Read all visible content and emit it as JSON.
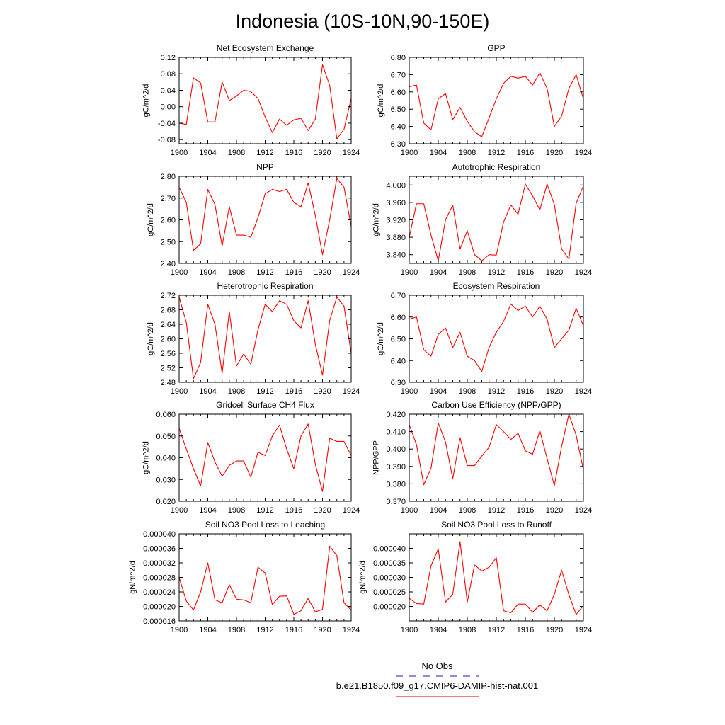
{
  "figure_title": "Indonesia (10S-10N,90-150E)",
  "legend": {
    "obs_label": "No Obs",
    "obs_color": "#4a4acc",
    "model_label": "b.e21.B1850.f09_g17.CMIP6-DAMIP-hist-nat.001",
    "model_color": "#e03030"
  },
  "chart_data": [
    {
      "type": "line",
      "title": "Net Ecosystem Exchange",
      "ylabel": "gC/m^2/d",
      "xlim": [
        1900,
        1924
      ],
      "xticks": [
        "1900",
        "1904",
        "1908",
        "1912",
        "1916",
        "1920",
        "1924"
      ],
      "ylim": [
        -0.09,
        0.12
      ],
      "yticks": [
        "-0.08",
        "-0.04",
        "0.00",
        "0.04",
        "0.08",
        "0.12"
      ],
      "x": [
        1900,
        1901,
        1902,
        1903,
        1904,
        1905,
        1906,
        1907,
        1908,
        1909,
        1910,
        1911,
        1912,
        1913,
        1914,
        1915,
        1916,
        1917,
        1918,
        1919,
        1920,
        1921,
        1922,
        1923,
        1924
      ],
      "series": [
        {
          "color": "#ff0000",
          "values": [
            -0.04,
            -0.043,
            0.07,
            0.058,
            -0.037,
            -0.037,
            0.06,
            0.015,
            0.026,
            0.04,
            0.037,
            0.02,
            -0.025,
            -0.063,
            -0.03,
            -0.045,
            -0.032,
            -0.028,
            -0.058,
            -0.03,
            0.102,
            0.052,
            -0.078,
            -0.055,
            0.02
          ]
        }
      ]
    },
    {
      "type": "line",
      "title": "GPP",
      "ylabel": "gC/m^2/d",
      "xlim": [
        1900,
        1924
      ],
      "xticks": [
        "1900",
        "1904",
        "1908",
        "1912",
        "1916",
        "1920",
        "1924"
      ],
      "ylim": [
        6.3,
        6.8
      ],
      "yticks": [
        "6.30",
        "6.40",
        "6.50",
        "6.60",
        "6.70",
        "6.80"
      ],
      "x": [
        1900,
        1901,
        1902,
        1903,
        1904,
        1905,
        1906,
        1907,
        1908,
        1909,
        1910,
        1911,
        1912,
        1913,
        1914,
        1915,
        1916,
        1917,
        1918,
        1919,
        1920,
        1921,
        1922,
        1923,
        1924
      ],
      "series": [
        {
          "color": "#ff0000",
          "values": [
            6.63,
            6.64,
            6.42,
            6.38,
            6.56,
            6.59,
            6.44,
            6.51,
            6.43,
            6.37,
            6.34,
            6.45,
            6.56,
            6.65,
            6.69,
            6.68,
            6.69,
            6.64,
            6.71,
            6.62,
            6.4,
            6.46,
            6.62,
            6.7,
            6.56
          ]
        }
      ]
    },
    {
      "type": "line",
      "title": "NPP",
      "ylabel": "gC/m^2/d",
      "xlim": [
        1900,
        1924
      ],
      "xticks": [
        "1900",
        "1904",
        "1908",
        "1912",
        "1916",
        "1920",
        "1924"
      ],
      "ylim": [
        2.4,
        2.8
      ],
      "yticks": [
        "2.40",
        "2.50",
        "2.60",
        "2.70",
        "2.80"
      ],
      "x": [
        1900,
        1901,
        1902,
        1903,
        1904,
        1905,
        1906,
        1907,
        1908,
        1909,
        1910,
        1911,
        1912,
        1913,
        1914,
        1915,
        1916,
        1917,
        1918,
        1919,
        1920,
        1921,
        1922,
        1923,
        1924
      ],
      "series": [
        {
          "color": "#ff0000",
          "values": [
            2.75,
            2.68,
            2.46,
            2.49,
            2.74,
            2.67,
            2.48,
            2.66,
            2.53,
            2.53,
            2.52,
            2.61,
            2.72,
            2.74,
            2.73,
            2.74,
            2.68,
            2.66,
            2.77,
            2.62,
            2.44,
            2.6,
            2.79,
            2.75,
            2.57
          ]
        }
      ]
    },
    {
      "type": "line",
      "title": "Autotrophic Respiration",
      "ylabel": "gC/m^2/d",
      "xlim": [
        1900,
        1924
      ],
      "xticks": [
        "1900",
        "1904",
        "1908",
        "1912",
        "1916",
        "1920",
        "1924"
      ],
      "ylim": [
        3.82,
        4.02
      ],
      "yticks": [
        "3.840",
        "3.880",
        "3.920",
        "3.960",
        "4.000"
      ],
      "x": [
        1900,
        1901,
        1902,
        1903,
        1904,
        1905,
        1906,
        1907,
        1908,
        1909,
        1910,
        1911,
        1912,
        1913,
        1914,
        1915,
        1916,
        1917,
        1918,
        1919,
        1920,
        1921,
        1922,
        1923,
        1924
      ],
      "series": [
        {
          "color": "#ff0000",
          "values": [
            3.88,
            3.957,
            3.957,
            3.885,
            3.826,
            3.92,
            3.954,
            3.853,
            3.895,
            3.84,
            3.826,
            3.84,
            3.839,
            3.915,
            3.954,
            3.933,
            4.002,
            3.975,
            3.943,
            4.002,
            3.955,
            3.853,
            3.83,
            3.958,
            3.998
          ]
        }
      ]
    },
    {
      "type": "line",
      "title": "Heterotrophic Respiration",
      "ylabel": "gC/m^2/d",
      "xlim": [
        1900,
        1924
      ],
      "xticks": [
        "1900",
        "1904",
        "1908",
        "1912",
        "1916",
        "1920",
        "1924"
      ],
      "ylim": [
        2.48,
        2.72
      ],
      "yticks": [
        "2.48",
        "2.52",
        "2.56",
        "2.60",
        "2.64",
        "2.68",
        "2.72"
      ],
      "x": [
        1900,
        1901,
        1902,
        1903,
        1904,
        1905,
        1906,
        1907,
        1908,
        1909,
        1910,
        1911,
        1912,
        1913,
        1914,
        1915,
        1916,
        1917,
        1918,
        1919,
        1920,
        1921,
        1922,
        1923,
        1924
      ],
      "series": [
        {
          "color": "#ff0000",
          "values": [
            2.715,
            2.645,
            2.49,
            2.535,
            2.695,
            2.64,
            2.505,
            2.675,
            2.525,
            2.558,
            2.53,
            2.625,
            2.695,
            2.675,
            2.705,
            2.695,
            2.65,
            2.63,
            2.705,
            2.585,
            2.5,
            2.65,
            2.715,
            2.69,
            2.56
          ]
        }
      ]
    },
    {
      "type": "line",
      "title": "Ecosystem Respiration",
      "ylabel": "gC/m^2/d",
      "xlim": [
        1900,
        1924
      ],
      "xticks": [
        "1900",
        "1904",
        "1908",
        "1912",
        "1916",
        "1920",
        "1924"
      ],
      "ylim": [
        6.3,
        6.7
      ],
      "yticks": [
        "6.30",
        "6.40",
        "6.50",
        "6.60",
        "6.70"
      ],
      "x": [
        1900,
        1901,
        1902,
        1903,
        1904,
        1905,
        1906,
        1907,
        1908,
        1909,
        1910,
        1911,
        1912,
        1913,
        1914,
        1915,
        1916,
        1917,
        1918,
        1919,
        1920,
        1921,
        1922,
        1923,
        1924
      ],
      "series": [
        {
          "color": "#ff0000",
          "values": [
            6.59,
            6.6,
            6.45,
            6.42,
            6.52,
            6.55,
            6.46,
            6.53,
            6.42,
            6.4,
            6.35,
            6.46,
            6.53,
            6.58,
            6.66,
            6.63,
            6.65,
            6.6,
            6.65,
            6.59,
            6.46,
            6.5,
            6.54,
            6.64,
            6.56
          ]
        }
      ]
    },
    {
      "type": "line",
      "title": "Gridcell Surface CH4 Flux",
      "ylabel": "gC/m^2/d",
      "xlim": [
        1900,
        1924
      ],
      "xticks": [
        "1900",
        "1904",
        "1908",
        "1912",
        "1916",
        "1920",
        "1924"
      ],
      "ylim": [
        0.02,
        0.06
      ],
      "yticks": [
        "0.020",
        "0.030",
        "0.040",
        "0.050",
        "0.060"
      ],
      "x": [
        1900,
        1901,
        1902,
        1903,
        1904,
        1905,
        1906,
        1907,
        1908,
        1909,
        1910,
        1911,
        1912,
        1913,
        1914,
        1915,
        1916,
        1917,
        1918,
        1919,
        1920,
        1921,
        1922,
        1923,
        1924
      ],
      "series": [
        {
          "color": "#ff0000",
          "values": [
            0.0535,
            0.044,
            0.035,
            0.027,
            0.047,
            0.038,
            0.0315,
            0.0365,
            0.0385,
            0.0385,
            0.031,
            0.0425,
            0.041,
            0.05,
            0.055,
            0.044,
            0.035,
            0.05,
            0.0555,
            0.037,
            0.0245,
            0.049,
            0.0475,
            0.0475,
            0.041
          ]
        }
      ]
    },
    {
      "type": "line",
      "title": "Carbon Use Efficiency (NPP/GPP)",
      "ylabel": "NPP/GPP",
      "xlim": [
        1900,
        1924
      ],
      "xticks": [
        "1900",
        "1904",
        "1908",
        "1912",
        "1916",
        "1920",
        "1924"
      ],
      "ylim": [
        0.37,
        0.42
      ],
      "yticks": [
        "0.370",
        "0.380",
        "0.390",
        "0.400",
        "0.410",
        "0.420"
      ],
      "x": [
        1900,
        1901,
        1902,
        1903,
        1904,
        1905,
        1906,
        1907,
        1908,
        1909,
        1910,
        1911,
        1912,
        1913,
        1914,
        1915,
        1916,
        1917,
        1918,
        1919,
        1920,
        1921,
        1922,
        1923,
        1924
      ],
      "series": [
        {
          "color": "#ff0000",
          "values": [
            0.414,
            0.4025,
            0.3795,
            0.389,
            0.415,
            0.404,
            0.383,
            0.4065,
            0.3905,
            0.3905,
            0.396,
            0.401,
            0.414,
            0.41,
            0.4055,
            0.409,
            0.399,
            0.397,
            0.4105,
            0.3945,
            0.379,
            0.4015,
            0.42,
            0.408,
            0.388
          ]
        }
      ]
    },
    {
      "type": "line",
      "title": "Soil NO3 Pool Loss to Leaching",
      "ylabel": "gN/m^2/d",
      "xlim": [
        1900,
        1924
      ],
      "xticks": [
        "1900",
        "1904",
        "1908",
        "1912",
        "1916",
        "1920",
        "1924"
      ],
      "ylim": [
        1.6e-05,
        4e-05
      ],
      "yticks": [
        "0.000016",
        "0.000020",
        "0.000024",
        "0.000028",
        "0.000032",
        "0.000036",
        "0.000040"
      ],
      "x": [
        1900,
        1901,
        1902,
        1903,
        1904,
        1905,
        1906,
        1907,
        1908,
        1909,
        1910,
        1911,
        1912,
        1913,
        1914,
        1915,
        1916,
        1917,
        1918,
        1919,
        1920,
        1921,
        1922,
        1923,
        1924
      ],
      "series": [
        {
          "color": "#ff0000",
          "values": [
            2.8e-05,
            2.15e-05,
            1.9e-05,
            2.4e-05,
            3.2e-05,
            2.18e-05,
            2.1e-05,
            2.6e-05,
            2.2e-05,
            2.18e-05,
            2.1e-05,
            3.08e-05,
            2.92e-05,
            2.05e-05,
            2.28e-05,
            2.29e-05,
            1.78e-05,
            1.88e-05,
            2.22e-05,
            1.85e-05,
            1.92e-05,
            3.66e-05,
            3.4e-05,
            2.1e-05,
            1.9e-05
          ]
        }
      ]
    },
    {
      "type": "line",
      "title": "Soil NO3 Pool Loss to Runoff",
      "ylabel": "gN/m^2/d",
      "xlim": [
        1900,
        1924
      ],
      "xticks": [
        "1900",
        "1904",
        "1908",
        "1912",
        "1916",
        "1920",
        "1924"
      ],
      "ylim": [
        1.5e-05,
        4.5e-05
      ],
      "yticks": [
        "0.000020",
        "0.000025",
        "0.000030",
        "0.000035",
        "0.000040"
      ],
      "x": [
        1900,
        1901,
        1902,
        1903,
        1904,
        1905,
        1906,
        1907,
        1908,
        1909,
        1910,
        1911,
        1912,
        1913,
        1914,
        1915,
        1916,
        1917,
        1918,
        1919,
        1920,
        1921,
        1922,
        1923,
        1924
      ],
      "series": [
        {
          "color": "#ff0000",
          "values": [
            2.28e-05,
            2.1e-05,
            2.08e-05,
            3.4e-05,
            3.98e-05,
            2.15e-05,
            2.42e-05,
            4.23e-05,
            2.15e-05,
            3.43e-05,
            3.22e-05,
            3.35e-05,
            3.68e-05,
            1.85e-05,
            1.78e-05,
            2.08e-05,
            2.08e-05,
            1.8e-05,
            2.05e-05,
            1.85e-05,
            2.42e-05,
            3.25e-05,
            2.4e-05,
            1.72e-05,
            2.03e-05
          ]
        }
      ]
    }
  ]
}
